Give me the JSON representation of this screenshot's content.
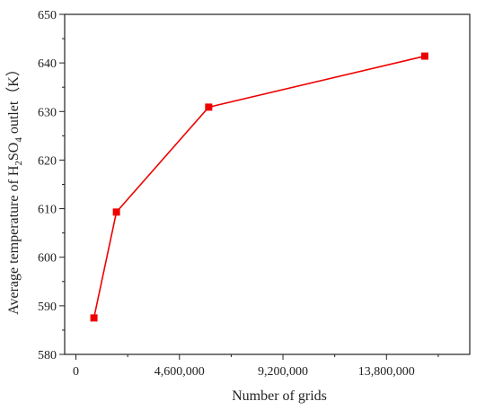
{
  "chart_data": {
    "type": "line",
    "title": "",
    "xlabel": "Number of grids",
    "ylabel_parts": {
      "before": "Average temperature of H",
      "sub1": "2",
      "middle": "SO",
      "sub2": "4",
      "after": " outlet（K）"
    },
    "xlim": [
      -500000,
      17500000
    ],
    "ylim": [
      580,
      650
    ],
    "xticks": [
      0,
      4600000,
      9200000,
      13800000
    ],
    "xtick_labels": [
      "0",
      "4,600,000",
      "9,200,000",
      "13,800,000"
    ],
    "yticks": [
      580,
      590,
      600,
      610,
      620,
      630,
      640,
      650
    ],
    "ytick_labels": [
      "580",
      "590",
      "600",
      "610",
      "620",
      "630",
      "640",
      "650"
    ],
    "grid": false,
    "legend": "none",
    "series": [
      {
        "color": "#ee0000",
        "marker": "square",
        "x": [
          800000,
          1800000,
          5900000,
          15500000
        ],
        "y": [
          587.5,
          609.3,
          630.9,
          641.4
        ]
      }
    ]
  }
}
